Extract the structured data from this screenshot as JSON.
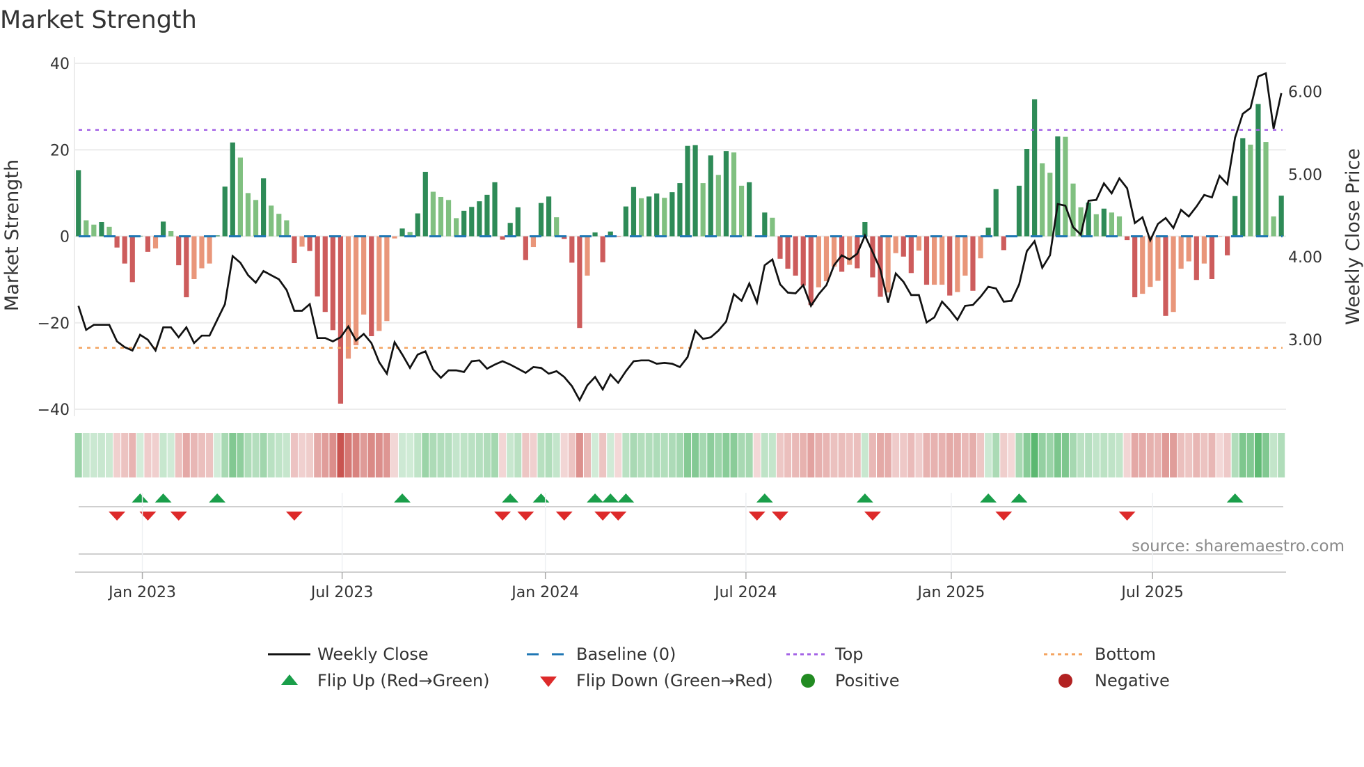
{
  "title": "Market Strength",
  "source_note": "source: sharemaestro.com",
  "colors": {
    "strong_green": "#2e8b57",
    "weak_green": "#80c080",
    "strong_red": "#cd5c5c",
    "weak_red": "#e9967a",
    "baseline": "#1f77b4",
    "top": "#a463e6",
    "bottom": "#f4a460",
    "line": "#111111",
    "flip_up": "#1a9e4a",
    "flip_down": "#dd2a2a",
    "positive": "#228b22",
    "negative": "#b22222"
  },
  "legend": [
    {
      "label": "Weekly Close",
      "symbol": "line"
    },
    {
      "label": "Baseline (0)",
      "symbol": "dash"
    },
    {
      "label": "Top",
      "symbol": "dot-top"
    },
    {
      "label": "Bottom",
      "symbol": "dot-bottom"
    },
    {
      "label": "Flip Up (Red→Green)",
      "symbol": "tri-up"
    },
    {
      "label": "Flip Down (Green→Red)",
      "symbol": "tri-down"
    },
    {
      "label": "Positive",
      "symbol": "circle-pos"
    },
    {
      "label": "Negative",
      "symbol": "circle-neg"
    }
  ],
  "chart_data": {
    "type": "bar",
    "title": "Market Strength",
    "ylabel": "Market Strength",
    "y2label": "Weekly Close Price",
    "ylim": [
      -40,
      40
    ],
    "y2lim": [
      2.16,
      6.34
    ],
    "yticks": [
      "40",
      "20",
      "0",
      "−20",
      "−40"
    ],
    "ytick_values": [
      40,
      20,
      0,
      -20,
      -40
    ],
    "y2ticks": [
      "6.00",
      "5.00",
      "4.00",
      "3.00"
    ],
    "y2tick_values": [
      6,
      5,
      4,
      3
    ],
    "xticks": [
      {
        "label": "Jan 2023",
        "week": 8.29
      },
      {
        "label": "Jul 2023",
        "week": 34.2
      },
      {
        "label": "Jan 2024",
        "week": 60.56
      },
      {
        "label": "Jul 2024",
        "week": 86.57
      },
      {
        "label": "Jan 2025",
        "week": 113.2
      },
      {
        "label": "Jul 2025",
        "week": 139.3
      }
    ],
    "top_level": 24.6,
    "bottom_level": -25.8,
    "baseline": 0,
    "strength": [
      15.3,
      3.7,
      2.7,
      3.3,
      2.2,
      -2.6,
      -6.3,
      -10.6,
      0.1,
      -3.6,
      -2.8,
      3.4,
      1.2,
      -6.7,
      -14.1,
      -9.9,
      -7.4,
      -6.3,
      0.2,
      11.5,
      21.7,
      18.2,
      10,
      8.4,
      13.4,
      7.1,
      5.2,
      3.7,
      -6.2,
      -2.4,
      -3.4,
      -13.9,
      -17.5,
      -21.7,
      -38.7,
      -28.3,
      -25.2,
      -18.1,
      -23.1,
      -21.9,
      -19.6,
      -0.5,
      1.8,
      1.0,
      5.3,
      14.9,
      10.3,
      9.1,
      8.4,
      4.2,
      5.9,
      6.8,
      8.1,
      9.6,
      12.5,
      -0.8,
      3.1,
      6.7,
      -5.5,
      -2.5,
      7.7,
      9.2,
      4.4,
      -0.6,
      -6.1,
      -21.2,
      -9.1,
      0.9,
      -6.0,
      1.1,
      -0.1,
      6.9,
      11.4,
      8.8,
      9.2,
      9.9,
      8.9,
      10.2,
      12.3,
      20.9,
      21.1,
      12.3,
      18.7,
      14.2,
      19.7,
      19.4,
      11.7,
      12.5,
      -0.1,
      5.5,
      4.3,
      -5.2,
      -7.5,
      -9.1,
      -11.4,
      -15.9,
      -11.8,
      -10.4,
      -7.0,
      -8.2,
      -6.6,
      -7.4,
      3.3,
      -9.5,
      -14.0,
      -13.0,
      -3.9,
      -4.7,
      -8.5,
      -3.3,
      -11.2,
      -11.2,
      -11.2,
      -13.7,
      -12.9,
      -9.1,
      -12.6,
      -5.1,
      2.0,
      10.9,
      -3.2,
      -0.1,
      11.7,
      20.2,
      31.7,
      16.9,
      14.7,
      23.1,
      23.0,
      12.2,
      6.7,
      7.8,
      5.1,
      6.4,
      5.5,
      4.6,
      -0.9,
      -14.1,
      -13.3,
      -11.7,
      -10.3,
      -18.4,
      -17.5,
      -7.5,
      -5.8,
      -10.1,
      -6.3,
      -9.9,
      -0.1,
      -4.4,
      9.3,
      22.7,
      21.2,
      30.6,
      21.8,
      4.6,
      9.4
    ],
    "weekly_close": [
      3.41,
      3.12,
      3.18,
      3.18,
      3.18,
      2.98,
      2.91,
      2.87,
      3.06,
      3.0,
      2.87,
      3.15,
      3.15,
      3.03,
      3.15,
      2.96,
      3.05,
      3.05,
      3.24,
      3.43,
      4.01,
      3.93,
      3.78,
      3.69,
      3.83,
      3.78,
      3.73,
      3.6,
      3.35,
      3.35,
      3.43,
      3.02,
      3.02,
      2.98,
      3.03,
      3.16,
      2.99,
      3.07,
      2.96,
      2.73,
      2.59,
      2.97,
      2.82,
      2.66,
      2.82,
      2.86,
      2.64,
      2.54,
      2.63,
      2.63,
      2.61,
      2.74,
      2.75,
      2.65,
      2.7,
      2.74,
      2.7,
      2.65,
      2.6,
      2.67,
      2.66,
      2.59,
      2.62,
      2.55,
      2.44,
      2.27,
      2.45,
      2.55,
      2.4,
      2.58,
      2.48,
      2.62,
      2.74,
      2.75,
      2.75,
      2.71,
      2.72,
      2.71,
      2.67,
      2.79,
      3.11,
      3.01,
      3.03,
      3.11,
      3.22,
      3.55,
      3.47,
      3.68,
      3.45,
      3.9,
      3.97,
      3.67,
      3.57,
      3.56,
      3.66,
      3.41,
      3.55,
      3.66,
      3.9,
      4.02,
      3.97,
      4.04,
      4.26,
      4.06,
      3.85,
      3.45,
      3.8,
      3.7,
      3.54,
      3.54,
      3.21,
      3.27,
      3.46,
      3.36,
      3.24,
      3.41,
      3.42,
      3.52,
      3.64,
      3.62,
      3.46,
      3.47,
      3.67,
      4.07,
      4.19,
      3.87,
      4.02,
      4.64,
      4.62,
      4.36,
      4.27,
      4.68,
      4.69,
      4.89,
      4.77,
      4.95,
      4.83,
      4.41,
      4.48,
      4.2,
      4.4,
      4.47,
      4.35,
      4.57,
      4.49,
      4.61,
      4.75,
      4.72,
      4.98,
      4.88,
      5.44,
      5.73,
      5.8,
      6.18,
      6.22,
      5.55,
      5.98
    ],
    "flip_up_weeks": [
      9,
      12,
      19,
      43,
      57,
      61,
      68,
      70,
      72,
      90,
      103,
      119,
      123,
      151
    ],
    "flip_down_weeks": [
      6,
      10,
      14,
      29,
      56,
      59,
      64,
      69,
      71,
      89,
      92,
      104,
      121,
      137
    ],
    "legend_placement": "bottom-center"
  }
}
